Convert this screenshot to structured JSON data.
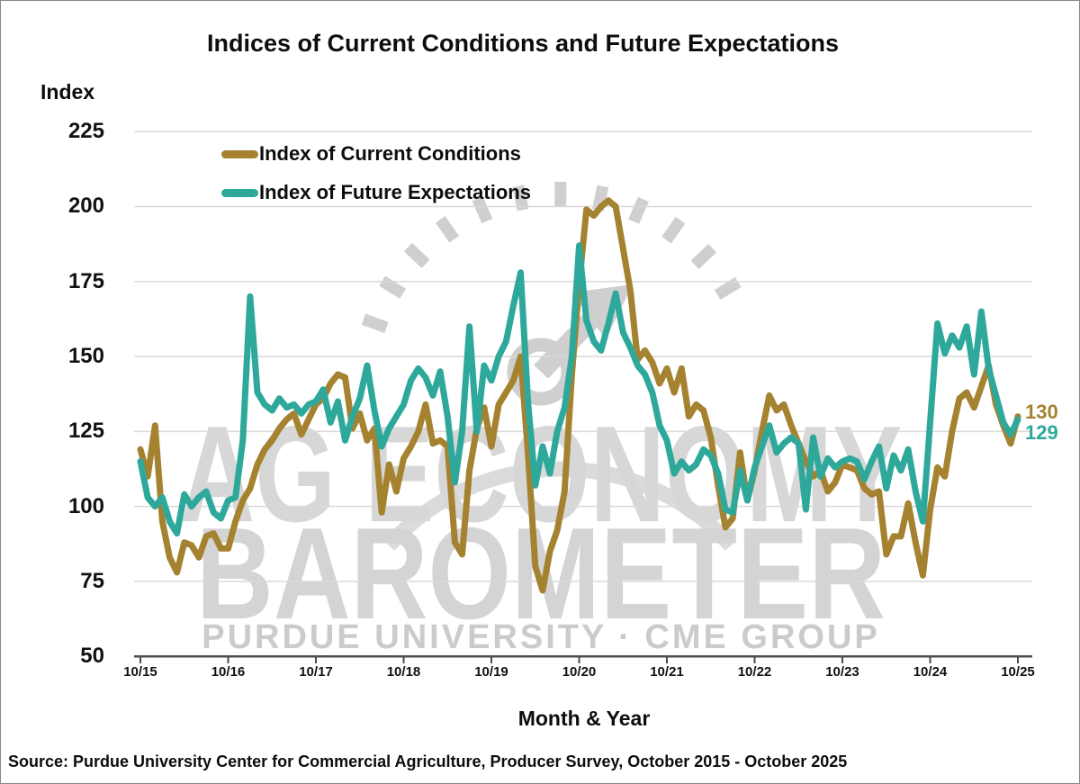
{
  "title": "Indices of Current Conditions and Future Expectations",
  "y_axis": {
    "title": "Index",
    "ticks": [
      225,
      200,
      175,
      150,
      125,
      100,
      75,
      50
    ]
  },
  "x_axis": {
    "title": "Month & Year",
    "tick_labels": [
      "10/15",
      "10/16",
      "10/17",
      "10/18",
      "10/19",
      "10/20",
      "10/21",
      "10/22",
      "10/23",
      "10/24",
      "10/25"
    ]
  },
  "legend": {
    "items": [
      {
        "label": "Index of Current Conditions",
        "color": "#A5822F"
      },
      {
        "label": "Index of Future Expectations",
        "color": "#2FA89C"
      }
    ]
  },
  "end_labels": {
    "current": {
      "text": "130",
      "color": "#A5822F"
    },
    "future": {
      "text": "129",
      "color": "#2FA89C"
    }
  },
  "watermark": {
    "line1": "AG ECONOMY",
    "line2": "BAROMETER",
    "line3": "PURDUE UNIVERSITY · CME GROUP",
    "gray": "#d7d7d7"
  },
  "source": "Source: Purdue University Center for Commercial Agriculture, Producer Survey, October 2015 - October 2025",
  "chart_data": {
    "type": "line",
    "title": "Indices of Current Conditions and Future Expectations",
    "xlabel": "Month & Year",
    "ylabel": "Index",
    "ylim": [
      50,
      225
    ],
    "yticks": [
      50,
      75,
      100,
      125,
      150,
      175,
      200,
      225
    ],
    "grid": true,
    "legend_position": "top-left",
    "x_unit": "month",
    "x_start": "10/2015",
    "x_end": "10/2025",
    "n_points": 121,
    "x_tick_labels": [
      "10/15",
      "10/16",
      "10/17",
      "10/18",
      "10/19",
      "10/20",
      "10/21",
      "10/22",
      "10/23",
      "10/24",
      "10/25"
    ],
    "end_value_labels": {
      "current_conditions": 130,
      "future_expectations": 129
    },
    "series": [
      {
        "name": "Index of Current Conditions",
        "color": "#A5822F",
        "values": [
          119,
          110,
          127,
          95,
          83,
          78,
          88,
          87,
          83,
          90,
          91,
          86,
          86,
          95,
          102,
          106,
          114,
          119,
          122,
          126,
          129,
          131,
          124,
          129,
          134,
          136,
          141,
          144,
          143,
          126,
          131,
          122,
          126,
          98,
          114,
          105,
          116,
          120,
          125,
          134,
          121,
          122,
          120,
          88,
          84,
          112,
          126,
          133,
          120,
          134,
          138,
          142,
          150,
          118,
          80,
          72,
          85,
          92,
          105,
          144,
          174,
          199,
          197,
          200,
          202,
          200,
          186,
          172,
          149,
          152,
          148,
          141,
          146,
          138,
          146,
          130,
          134,
          132,
          123,
          107,
          93,
          96,
          118,
          102,
          112,
          125,
          137,
          132,
          134,
          127,
          121,
          115,
          110,
          112,
          105,
          108,
          114,
          113,
          112,
          106,
          104,
          105,
          84,
          90,
          90,
          101,
          88,
          77,
          99,
          113,
          110,
          125,
          136,
          138,
          133,
          140,
          147,
          134,
          127,
          121,
          130
        ]
      },
      {
        "name": "Index of Future Expectations",
        "color": "#2FA89C",
        "values": [
          115,
          103,
          100,
          103,
          95,
          91,
          104,
          100,
          103,
          105,
          98,
          96,
          102,
          103,
          122,
          170,
          138,
          134,
          132,
          136,
          133,
          134,
          131,
          134,
          135,
          139,
          128,
          135,
          122,
          130,
          136,
          147,
          132,
          120,
          126,
          130,
          134,
          142,
          146,
          143,
          137,
          145,
          130,
          108,
          125,
          160,
          125,
          147,
          142,
          150,
          155,
          167,
          178,
          135,
          107,
          120,
          111,
          125,
          133,
          150,
          187,
          162,
          155,
          152,
          161,
          171,
          158,
          153,
          147,
          144,
          138,
          127,
          122,
          111,
          115,
          112,
          114,
          119,
          117,
          111,
          99,
          98,
          112,
          102,
          113,
          120,
          127,
          118,
          121,
          123,
          121,
          99,
          123,
          110,
          116,
          113,
          115,
          116,
          115,
          109,
          115,
          120,
          106,
          117,
          112,
          119,
          105,
          95,
          128,
          161,
          151,
          157,
          153,
          160,
          144,
          165,
          146,
          137,
          128,
          124,
          129
        ]
      }
    ]
  }
}
